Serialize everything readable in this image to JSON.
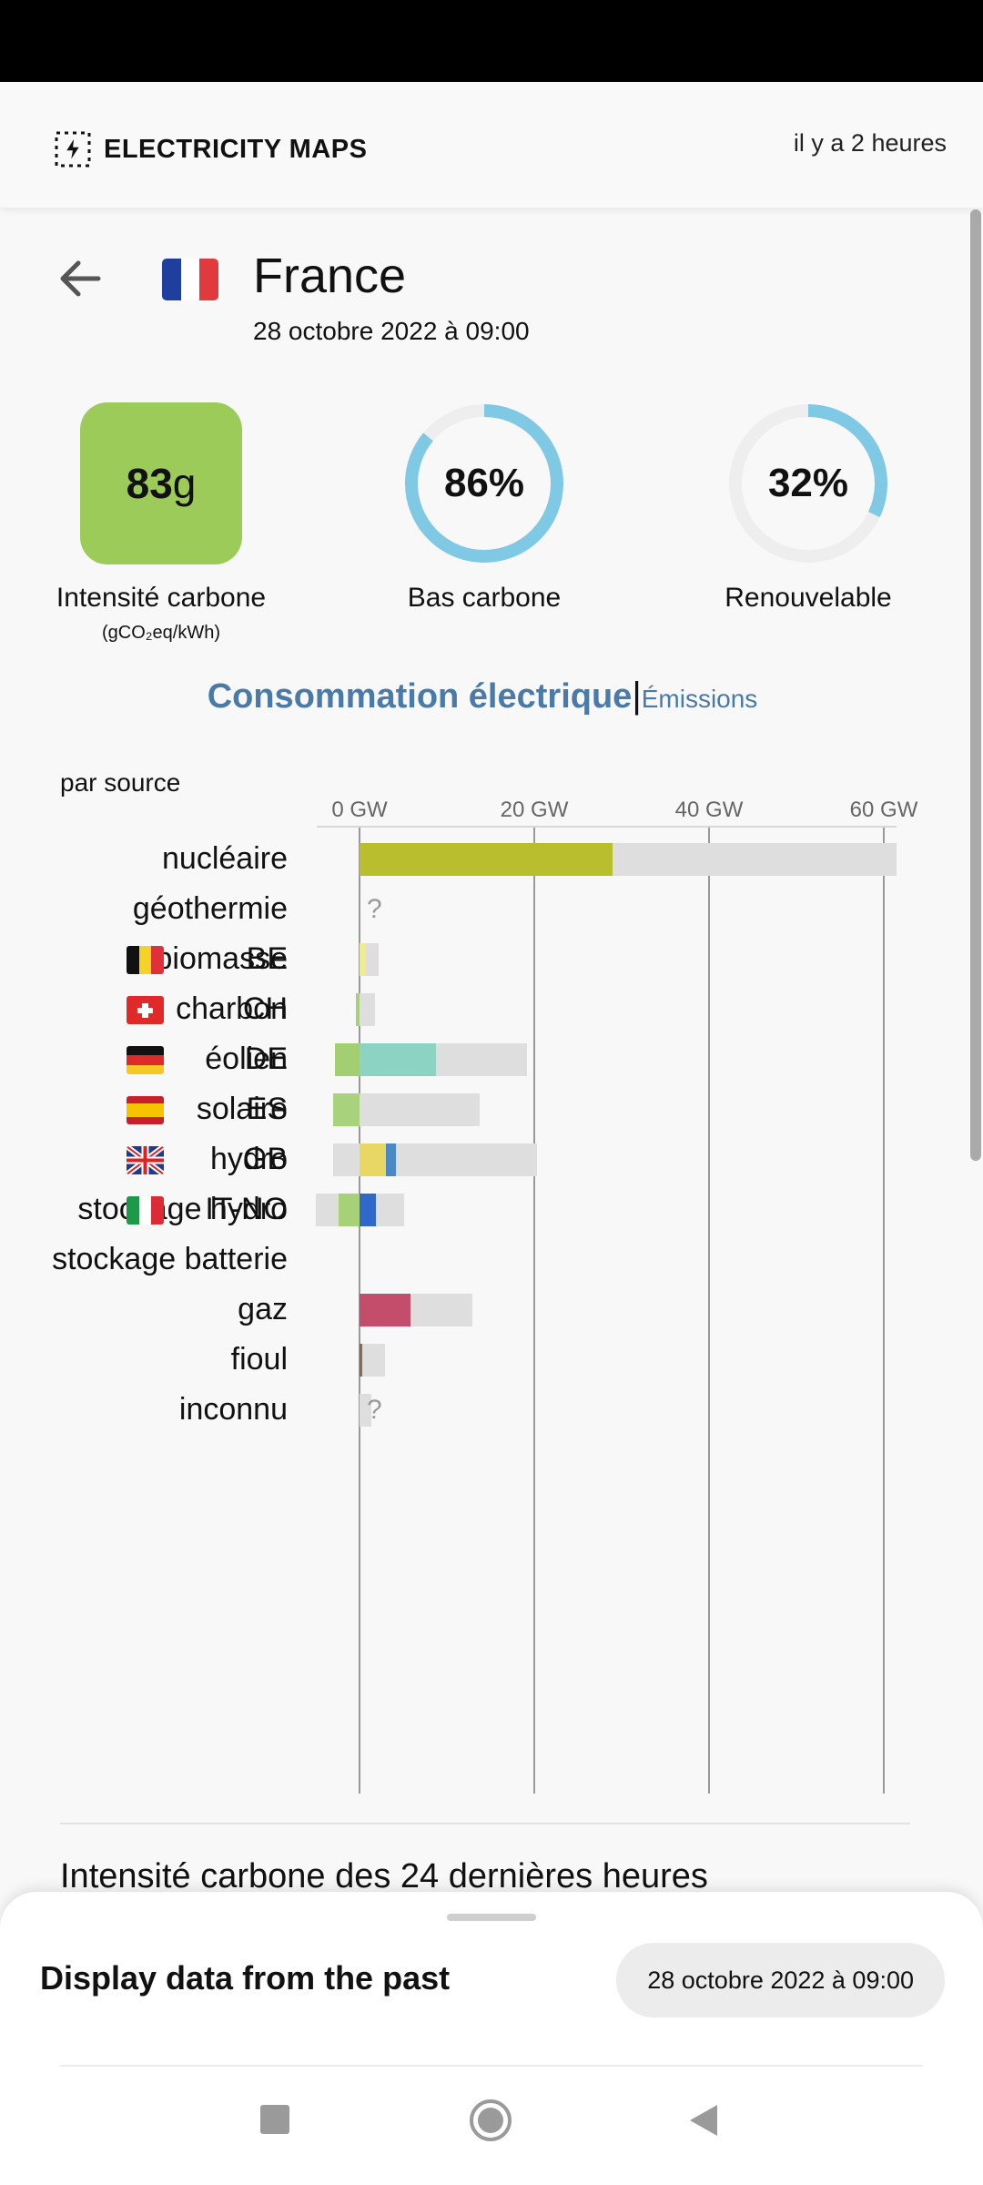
{
  "app": {
    "name": "ELECTRICITY MAPS",
    "updated": "il y a 2 heures"
  },
  "zone": {
    "name": "France",
    "datetime": "28 octobre 2022 à 09:00"
  },
  "metrics": {
    "carbon_intensity": {
      "value": "83",
      "unit_suffix": "g",
      "label": "Intensité carbone",
      "unit": "(gCO₂eq/kWh)",
      "color": "#9ccb59"
    },
    "low_carbon": {
      "value": "86%",
      "fraction": 0.86,
      "label": "Bas carbone"
    },
    "renewable": {
      "value": "32%",
      "fraction": 0.32,
      "label": "Renouvelable"
    }
  },
  "toggle": {
    "active": "Consommation électrique",
    "separator": "|",
    "inactive": "Émissions"
  },
  "chart_data": {
    "type": "bar",
    "title": "par source",
    "xlabel": "",
    "ticks": [
      "0 GW",
      "20 GW",
      "40 GW",
      "60 GW"
    ],
    "xlim": [
      -5,
      62
    ],
    "unit": "GW",
    "sources": [
      {
        "name": "nucléaire",
        "value": 29,
        "capacity": 61.5,
        "color": "#b9be2f"
      },
      {
        "name": "géothermie",
        "value": null,
        "unknown": true
      },
      {
        "name": "biomasse",
        "value": 0.7,
        "capacity": 2.2,
        "color": "#3f7b6c"
      },
      {
        "name": "charbon",
        "value": 0,
        "capacity": 1.8,
        "color": "#555555"
      },
      {
        "name": "éolien",
        "value": 8.7,
        "capacity": 19.2,
        "color": "#8dd3c3"
      },
      {
        "name": "solaire",
        "value": 0.3,
        "capacity": 13.7,
        "color": "#f39a3a"
      },
      {
        "name": "hydro",
        "value": 4.2,
        "capacity": 20.3,
        "color": "#4a89c5"
      },
      {
        "name": "stockage hydro",
        "value": 1.9,
        "capacity": 5.1,
        "capacity_negative": -5,
        "color": "#3068c9"
      },
      {
        "name": "stockage batterie",
        "value": 0,
        "capacity": 0,
        "color": "#bbbbbb"
      },
      {
        "name": "gaz",
        "value": 5.8,
        "capacity": 12.9,
        "color": "#c44d6c"
      },
      {
        "name": "fioul",
        "value": 0.2,
        "capacity": 2.9,
        "color": "#8a6a4a"
      },
      {
        "name": "inconnu",
        "value": 0,
        "capacity": 1.4,
        "unknown": true,
        "color": "#bbbbbb"
      }
    ],
    "exchanges": [
      {
        "name": "BE",
        "value": 0.7,
        "color": "#f0ec8c"
      },
      {
        "name": "CH",
        "value": -0.4,
        "color": "#a8cf79"
      },
      {
        "name": "DE",
        "value": -2.8,
        "color": "#a3cf72"
      },
      {
        "name": "ES",
        "value": -3.0,
        "capacity_pos": 2.8,
        "color": "#a8d27c"
      },
      {
        "name": "GB",
        "value": 3.0,
        "capacity_neg": -3.0,
        "color": "#e8d762"
      },
      {
        "name": "IT-NO",
        "value": -2.4,
        "color": "#a6d176"
      }
    ]
  },
  "history_title": "Intensité carbone des 24 dernières heures",
  "bottom_sheet": {
    "label": "Display data from the past",
    "date": "28 octobre 2022 à 09:00"
  }
}
